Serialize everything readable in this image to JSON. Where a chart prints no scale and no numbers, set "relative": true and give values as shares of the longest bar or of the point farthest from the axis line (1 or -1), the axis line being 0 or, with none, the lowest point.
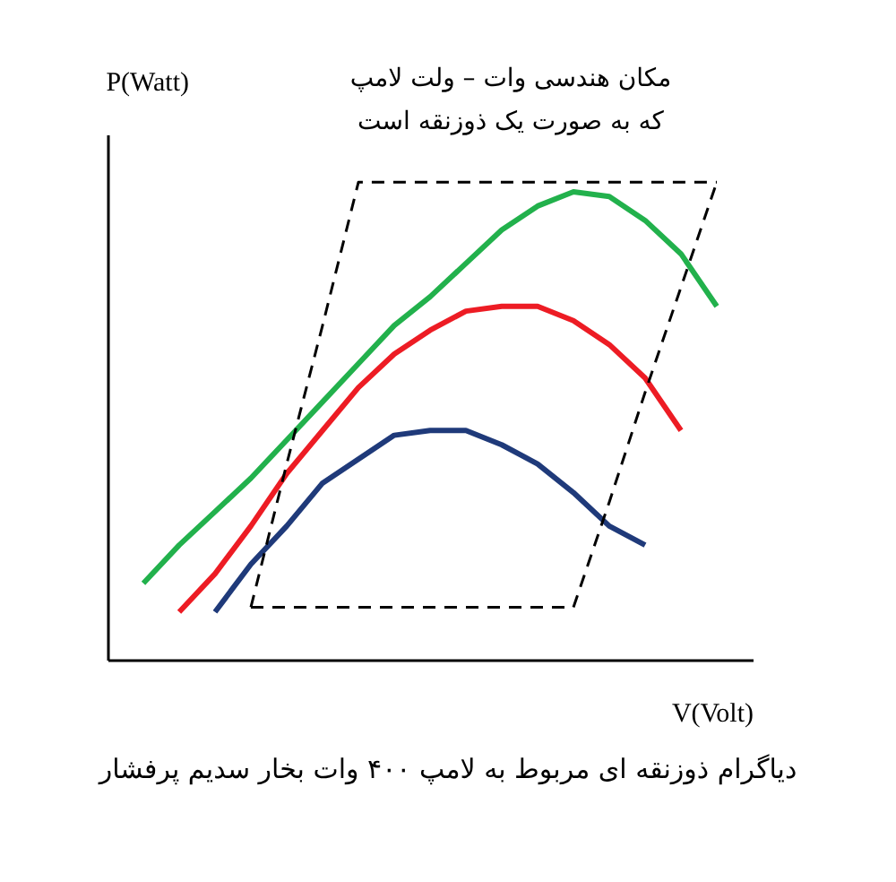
{
  "chart_data": {
    "type": "line",
    "relative": true,
    "grid": false,
    "marker": "none",
    "xlabel": "V(Volt)",
    "ylabel": "P(Watt)",
    "annotations": [
      "مکان هندسی وات – ولت لامپ\nکه به صورت یک ذوزنقه است",
      "دیاگرام ذوزنقه ای مربوط به لامپ ۴۰۰ وات بخار سدیم پرفشار"
    ],
    "categories": [
      null,
      null,
      null,
      null,
      null,
      null,
      null,
      null,
      null,
      null,
      null,
      null,
      null,
      null,
      null,
      null,
      null,
      null,
      null
    ],
    "series": [
      {
        "color": "#22b14c",
        "values": [
          null,
          0.16,
          0.24,
          0.31,
          0.38,
          0.46,
          0.54,
          0.62,
          0.7,
          0.76,
          0.83,
          0.9,
          0.95,
          0.98,
          0.97,
          0.92,
          0.85,
          0.74,
          null
        ]
      },
      {
        "color": "#ed1c24",
        "values": [
          null,
          null,
          0.1,
          0.18,
          0.28,
          0.39,
          0.48,
          0.57,
          0.64,
          0.69,
          0.73,
          0.74,
          0.74,
          0.71,
          0.66,
          0.59,
          0.48,
          null,
          null
        ]
      },
      {
        "color": "#1f3a7a",
        "values": [
          null,
          null,
          null,
          0.1,
          0.2,
          0.28,
          0.37,
          0.42,
          0.47,
          0.48,
          0.48,
          0.45,
          0.41,
          0.35,
          0.28,
          0.24,
          null,
          null,
          null
        ]
      },
      {
        "color": "#000000",
        "line_style": "dashed",
        "values": [
          null,
          null,
          null,
          null,
          0.11,
          0.11,
          0.11,
          0.11,
          0.11,
          0.11,
          0.11,
          0.11,
          0.11,
          0.11,
          0.33,
          0.56,
          0.78,
          1,
          null
        ]
      },
      {
        "color": "#000000",
        "line_style": "dashed",
        "values": [
          null,
          null,
          null,
          null,
          0.11,
          0.41,
          0.7,
          1,
          1,
          1,
          1,
          1,
          1,
          1,
          1,
          1,
          1,
          1,
          null
        ]
      }
    ]
  }
}
